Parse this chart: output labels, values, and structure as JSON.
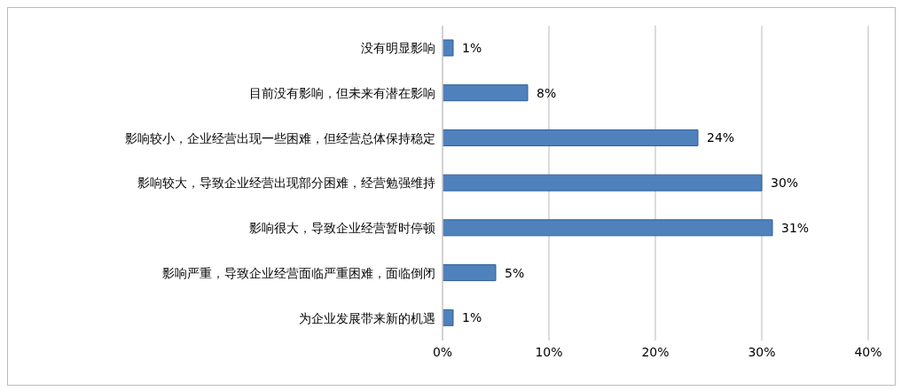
{
  "chart_data": {
    "type": "bar",
    "orientation": "horizontal",
    "categories": [
      "没有明显影响",
      "目前没有影响，但未来有潜在影响",
      "影响较小，企业经营出现一些困难，但经营总体保持稳定",
      "影响较大，导致企业经营出现部分困难，经营勉强维持",
      "影响很大，导致企业经营暂时停顿",
      "影响严重，导致企业经营面临严重困难，面临倒闭",
      "为企业发展带来新的机遇"
    ],
    "values": [
      1,
      8,
      24,
      30,
      31,
      5,
      1
    ],
    "value_labels": [
      "1%",
      "8%",
      "24%",
      "30%",
      "31%",
      "5%",
      "1%"
    ],
    "color": "#4f81bd",
    "xlim": [
      0,
      40
    ],
    "xticks": [
      {
        "value": 0,
        "label": "0%"
      },
      {
        "value": 10,
        "label": "10%"
      },
      {
        "value": 20,
        "label": "20%"
      },
      {
        "value": 30,
        "label": "30%"
      },
      {
        "value": 40,
        "label": "40%"
      }
    ],
    "grid": "x"
  }
}
